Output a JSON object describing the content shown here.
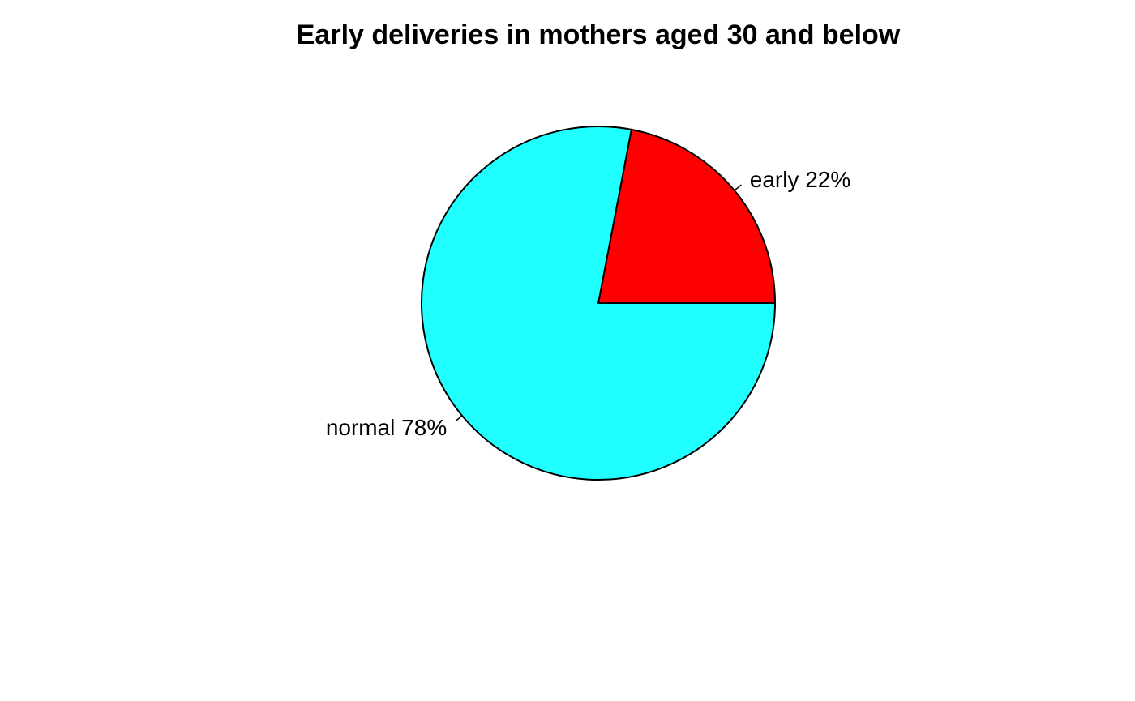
{
  "chart_data": {
    "type": "pie",
    "title": "Early deliveries in mothers aged 30 and below",
    "start_angle_deg": 0,
    "direction": "counterclockwise",
    "slices": [
      {
        "label": "early 22%",
        "category": "early",
        "value": 22,
        "color": "#FF0000"
      },
      {
        "label": "normal 78%",
        "category": "normal",
        "value": 78,
        "color": "#20FFFF"
      }
    ],
    "border_color": "#000000",
    "legend": "none"
  }
}
